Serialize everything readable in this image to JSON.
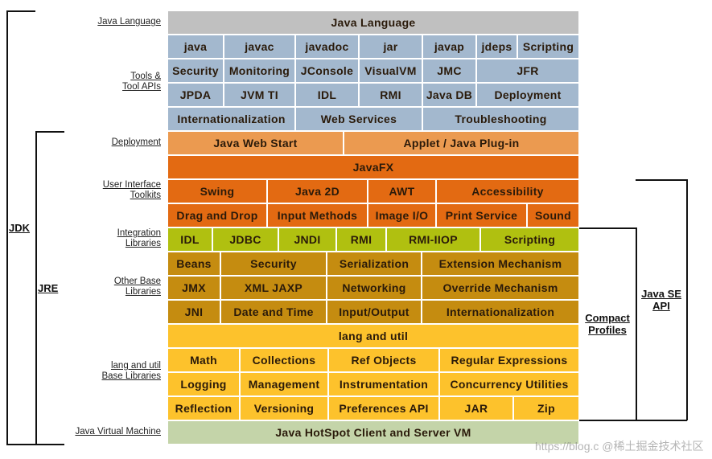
{
  "colors": {
    "language": "#c0c0c0",
    "tools": "#a3b8ce",
    "deployment": "#eb9a50",
    "ui": "#e36a12",
    "integration": "#b0c010",
    "base": "#c58c10",
    "lang_util": "#fdc22c",
    "jvm": "#c4d4a9"
  },
  "side_labels": {
    "java_language": "Java Language",
    "tools": [
      "Tools &",
      "Tool APIs"
    ],
    "deployment": "Deployment",
    "ui": [
      "User Interface",
      "Toolkits"
    ],
    "integration": [
      "Integration",
      "Libraries"
    ],
    "other_base": [
      "Other Base",
      "Libraries"
    ],
    "lang_util": [
      "lang and util",
      "Base Libraries"
    ],
    "jvm": "Java Virtual Machine"
  },
  "brackets": {
    "jdk": "JDK",
    "jre": "JRE",
    "compact": [
      "Compact",
      "Profiles"
    ],
    "se_api": [
      "Java SE",
      "API"
    ]
  },
  "rows": [
    {
      "group": "language",
      "cells": [
        "Java Language"
      ]
    },
    {
      "group": "tools",
      "cells": [
        "java",
        "javac",
        "javadoc",
        "jar",
        "javap",
        "jdeps",
        "Scripting"
      ]
    },
    {
      "group": "tools",
      "cells": [
        "Security",
        "Monitoring",
        "JConsole",
        "VisualVM",
        "JMC",
        "JFR"
      ]
    },
    {
      "group": "tools",
      "cells": [
        "JPDA",
        "JVM TI",
        "IDL",
        "RMI",
        "Java DB",
        "Deployment"
      ]
    },
    {
      "group": "tools",
      "cells": [
        "Internationalization",
        "Web Services",
        "Troubleshooting"
      ]
    },
    {
      "group": "deployment",
      "cells": [
        "Java Web Start",
        "Applet / Java Plug-in"
      ]
    },
    {
      "group": "ui",
      "cells": [
        "JavaFX"
      ]
    },
    {
      "group": "ui",
      "cells": [
        "Swing",
        "Java 2D",
        "AWT",
        "Accessibility"
      ]
    },
    {
      "group": "ui",
      "cells": [
        "Drag and Drop",
        "Input Methods",
        "Image I/O",
        "Print Service",
        "Sound"
      ]
    },
    {
      "group": "integration",
      "cells": [
        "IDL",
        "JDBC",
        "JNDI",
        "RMI",
        "RMI-IIOP",
        "Scripting"
      ]
    },
    {
      "group": "base",
      "cells": [
        "Beans",
        "Security",
        "Serialization",
        "Extension Mechanism"
      ]
    },
    {
      "group": "base",
      "cells": [
        "JMX",
        "XML JAXP",
        "Networking",
        "Override Mechanism"
      ]
    },
    {
      "group": "base",
      "cells": [
        "JNI",
        "Date and Time",
        "Input/Output",
        "Internationalization"
      ]
    },
    {
      "group": "lang_util",
      "cells": [
        "lang and util"
      ]
    },
    {
      "group": "lang_util",
      "cells": [
        "Math",
        "Collections",
        "Ref Objects",
        "Regular Expressions"
      ]
    },
    {
      "group": "lang_util",
      "cells": [
        "Logging",
        "Management",
        "Instrumentation",
        "Concurrency Utilities"
      ]
    },
    {
      "group": "lang_util",
      "cells": [
        "Reflection",
        "Versioning",
        "Preferences API",
        "JAR",
        "Zip"
      ]
    },
    {
      "group": "jvm",
      "cells": [
        "Java HotSpot Client and Server VM"
      ]
    }
  ],
  "watermark": "https://blog.c @稀土掘金技术社区"
}
